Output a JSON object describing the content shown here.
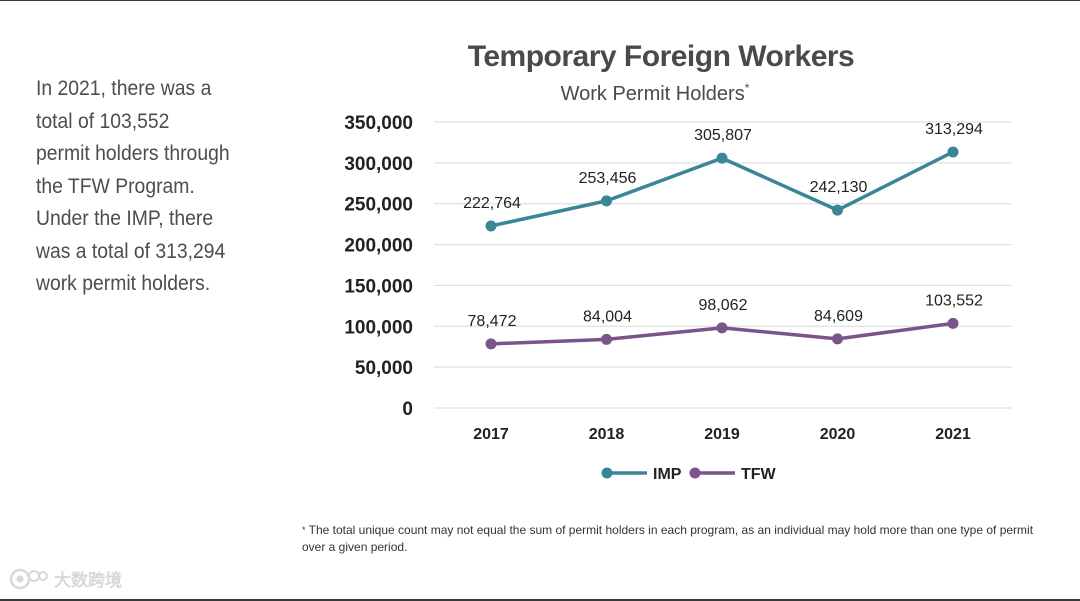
{
  "summary": {
    "lines": [
      "In 2021, there was a",
      "total of 103,552",
      "permit holders through",
      "the TFW Program.",
      "Under the IMP, there",
      "was a total of 313,294",
      "work permit holders."
    ]
  },
  "footnote": {
    "marker": "*",
    "text": "The total unique count may not equal the sum of permit holders in each program, as an individual may hold more than one type of permit over a given period."
  },
  "watermark": {
    "text": "大数跨境",
    "icon": "camera-logo-icon"
  },
  "colors": {
    "imp": "#3a8696",
    "tfw": "#7a548a",
    "grid": "#d9d9d9"
  },
  "chart_data": {
    "type": "line",
    "title": "Temporary Foreign Workers",
    "subtitle": "Work Permit Holders",
    "subtitle_marker": "*",
    "categories": [
      "2017",
      "2018",
      "2019",
      "2020",
      "2021"
    ],
    "series": [
      {
        "name": "IMP",
        "values": [
          222764,
          253456,
          305807,
          242130,
          313294
        ],
        "labels": [
          "222,764",
          "253,456",
          "305,807",
          "242,130",
          "313,294"
        ]
      },
      {
        "name": "TFW",
        "values": [
          78472,
          84004,
          98062,
          84609,
          103552
        ],
        "labels": [
          "78,472",
          "84,004",
          "98,062",
          "84,609",
          "103,552"
        ]
      }
    ],
    "ylim": [
      0,
      350000
    ],
    "yticks": [
      0,
      50000,
      100000,
      150000,
      200000,
      250000,
      300000,
      350000
    ],
    "ytick_labels": [
      "0",
      "50,000",
      "100,000",
      "150,000",
      "200,000",
      "250,000",
      "300,000",
      "350,000"
    ],
    "grid": true,
    "legend_position": "bottom-center",
    "xlabel": "",
    "ylabel": ""
  }
}
